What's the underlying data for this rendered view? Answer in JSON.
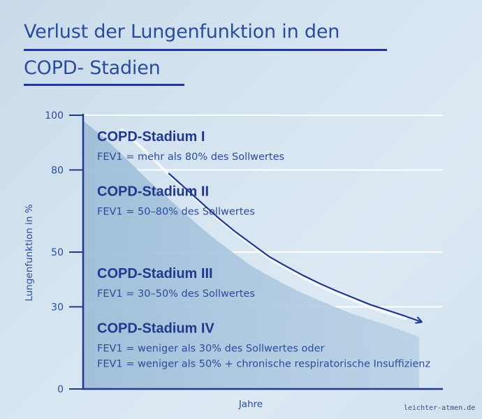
{
  "chart_data": {
    "type": "area",
    "title_lines": [
      "Verlust der Lungenfunktion in den",
      "COPD- Stadien"
    ],
    "ylabel": "Lungenfunktion in %",
    "xlabel": "Jahre",
    "ylim": [
      0,
      100
    ],
    "yticks": [
      0,
      30,
      50,
      80,
      100
    ],
    "grid": true,
    "stages": [
      {
        "title": "COPD-Stadium I",
        "lines": [
          "FEV1 = mehr als 80% des Sollwertes"
        ],
        "range": [
          80,
          100
        ]
      },
      {
        "title": "COPD-Stadium II",
        "lines": [
          "FEV1 = 50–80% des Sollwertes"
        ],
        "range": [
          50,
          80
        ]
      },
      {
        "title": "COPD-Stadium III",
        "lines": [
          "FEV1 = 30–50% des Sollwertes"
        ],
        "range": [
          30,
          50
        ]
      },
      {
        "title": "COPD-Stadium IV",
        "lines": [
          "FEV1 = weniger als 30% des Sollwertes oder",
          "FEV1 = weniger als 50% + chronische respiratorische Insuffizienz"
        ],
        "range": [
          0,
          30
        ]
      }
    ],
    "curve": {
      "x": [
        0,
        5,
        10,
        15,
        20,
        25,
        30,
        35,
        40,
        45,
        50,
        55,
        60,
        65,
        70,
        75,
        80,
        85,
        90,
        95,
        100
      ],
      "y": [
        98,
        93,
        87.5,
        81.5,
        75.5,
        70,
        64.5,
        59,
        54,
        49.5,
        45,
        41.5,
        38.2,
        35.2,
        32.5,
        30,
        27.5,
        25.5,
        23.5,
        21.3,
        19
      ]
    },
    "colors": {
      "axis": "#22388c",
      "text": "#2b4b9b",
      "area": "#a9c6df",
      "arrow": "#22388c",
      "grid": "#ffffff"
    }
  },
  "footer": "leichter-atmen.de"
}
